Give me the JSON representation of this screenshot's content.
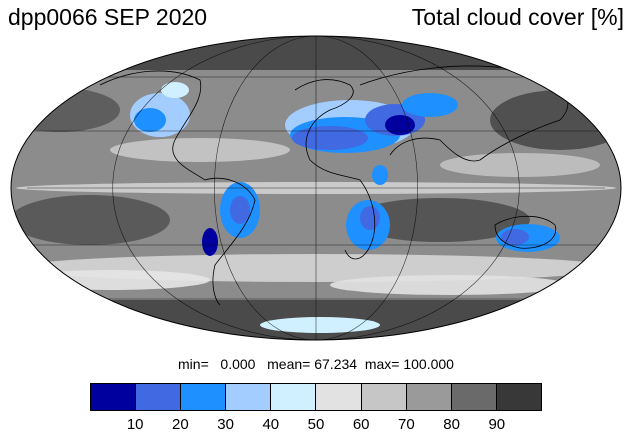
{
  "header": {
    "left_title": "dpp0066 SEP 2020",
    "right_title": "Total cloud cover [%]"
  },
  "stats": {
    "min_label": "min=",
    "min_value": "0.000",
    "mean_label": "mean=",
    "mean_value": "67.234",
    "max_label": "max=",
    "max_value": "100.000"
  },
  "colorbar": {
    "colors": [
      "#00009e",
      "#4169e1",
      "#1e90ff",
      "#a3cdff",
      "#d0f0ff",
      "#e2e2e2",
      "#c6c6c6",
      "#9a9a9a",
      "#6a6a6a",
      "#383838"
    ],
    "ticks": [
      "10",
      "20",
      "30",
      "40",
      "50",
      "60",
      "70",
      "80",
      "90"
    ]
  },
  "map": {
    "projection": "Mollweide",
    "grid": true,
    "colors": {
      "ocean_dark": "#4a4a4a",
      "ocean_mid": "#8c8c8c",
      "light": "#d9d9d9",
      "coast": "#000000"
    }
  }
}
